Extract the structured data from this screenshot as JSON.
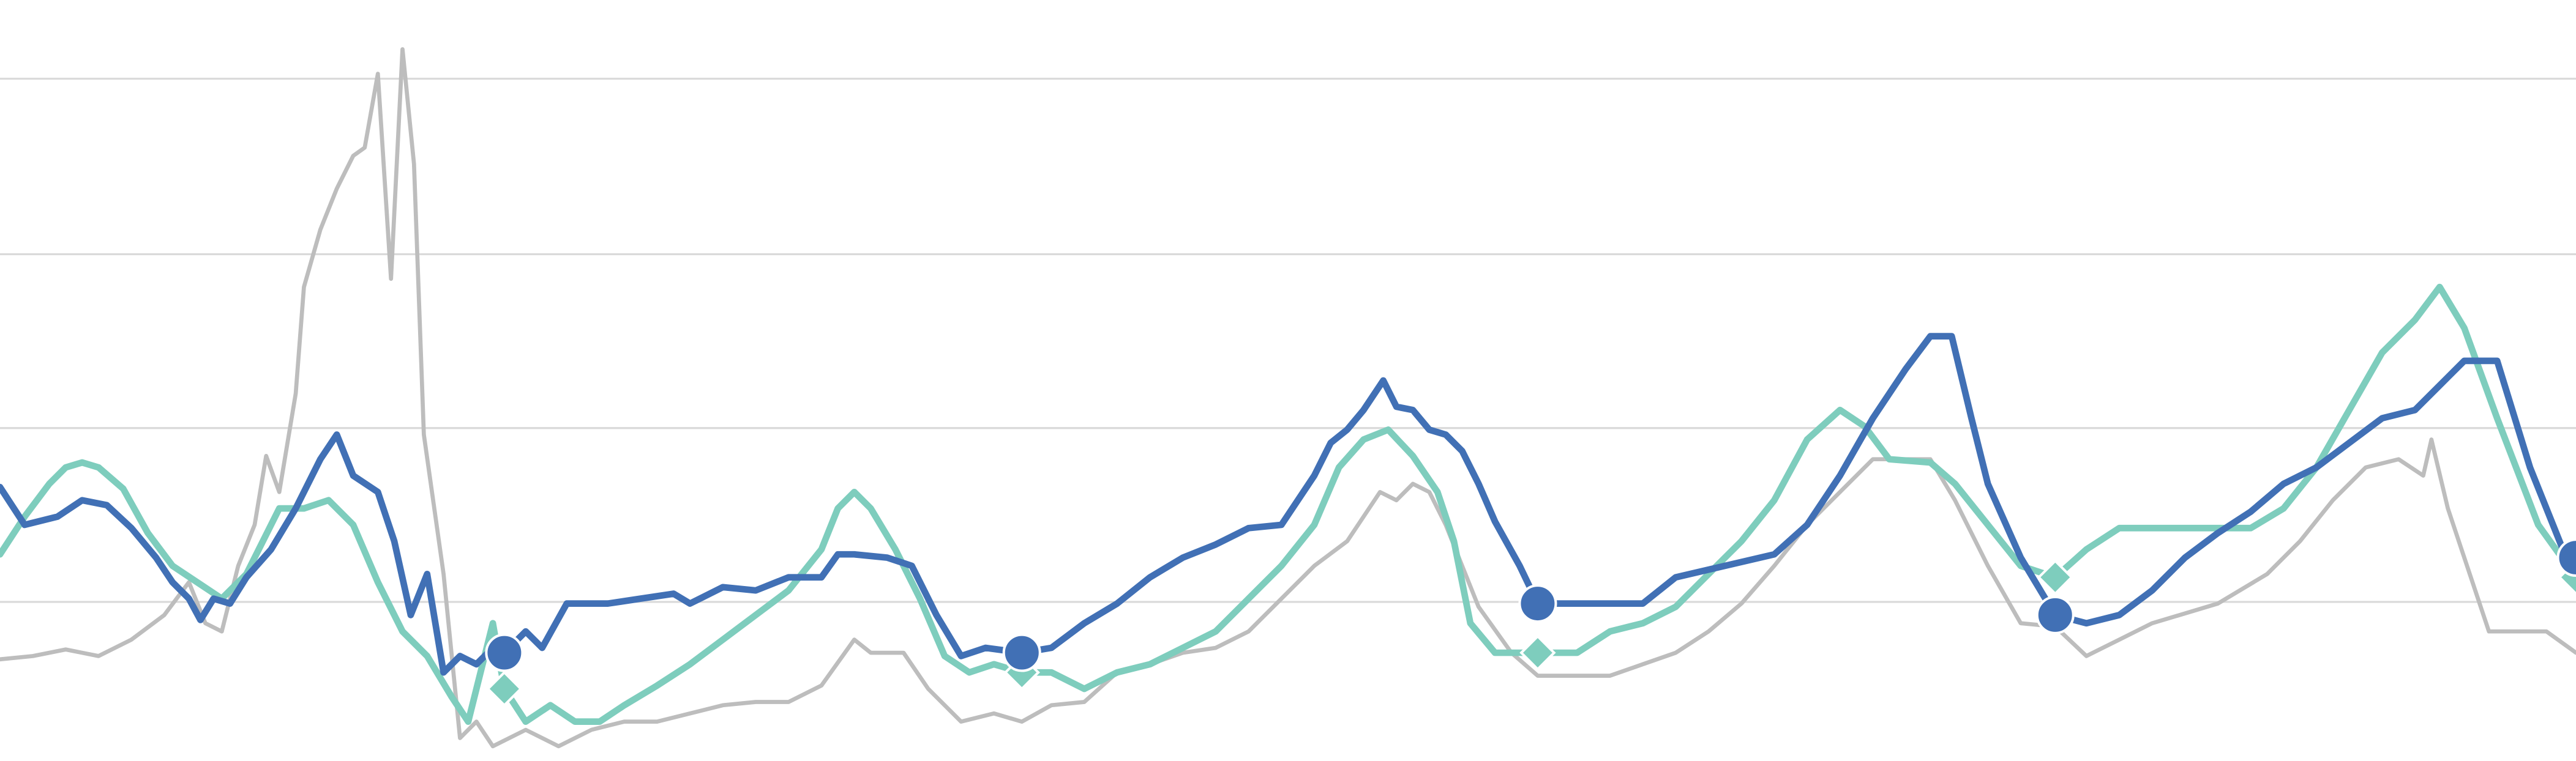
{
  "chart_data": {
    "type": "line",
    "xlim": [
      0,
      1568
    ],
    "ylim": [
      0,
      464
    ],
    "yticks": [
      97,
      203,
      309,
      416
    ],
    "grid": true,
    "series": [
      {
        "color": "#bdbdbd",
        "width": 2.5,
        "marker": "none",
        "markers": [],
        "x": [
          0,
          20,
          40,
          60,
          80,
          100,
          115,
          125,
          135,
          145,
          155,
          162,
          170,
          180,
          185,
          195,
          205,
          215,
          222,
          230,
          238,
          245,
          252,
          258,
          270,
          280,
          290,
          300,
          320,
          340,
          360,
          380,
          400,
          420,
          440,
          460,
          480,
          500,
          520,
          530,
          550,
          565,
          585,
          605,
          622,
          640,
          660,
          680,
          700,
          720,
          740,
          760,
          780,
          800,
          820,
          840,
          850,
          860,
          870,
          880,
          900,
          920,
          936,
          980,
          1000,
          1020,
          1040,
          1060,
          1080,
          1100,
          1120,
          1140,
          1175,
          1190,
          1210,
          1230,
          1251,
          1270,
          1290,
          1310,
          1350,
          1380,
          1400,
          1420,
          1440,
          1460,
          1475,
          1480,
          1490,
          1515,
          1550,
          1568
        ],
        "values": [
          62,
          64,
          68,
          64,
          74,
          89,
          109,
          84,
          79,
          119,
          144,
          186,
          164,
          224,
          289,
          324,
          349,
          369,
          374,
          419,
          294,
          434,
          364,
          199,
          114,
          14,
          24,
          9,
          19,
          9,
          19,
          24,
          24,
          29,
          34,
          36,
          36,
          46,
          74,
          66,
          66,
          44,
          24,
          29,
          24,
          34,
          36,
          54,
          59,
          66,
          69,
          79,
          99,
          119,
          134,
          164,
          159,
          169,
          164,
          144,
          94,
          66,
          52,
          52,
          59,
          66,
          79,
          96,
          119,
          144,
          164,
          184,
          184,
          159,
          119,
          84,
          82,
          64,
          74,
          84,
          96,
          114,
          134,
          159,
          179,
          184,
          174,
          196,
          154,
          79,
          79,
          66
        ]
      },
      {
        "color": "#7ecdbd",
        "width": 4,
        "marker": "diamond",
        "markers": [
          22,
          42,
          60,
          76,
          90
        ],
        "x": [
          0,
          15,
          30,
          40,
          50,
          60,
          75,
          90,
          105,
          120,
          135,
          150,
          170,
          185,
          200,
          215,
          230,
          245,
          260,
          275,
          285,
          300,
          307,
          320,
          335,
          350,
          365,
          380,
          400,
          420,
          440,
          460,
          480,
          500,
          510,
          520,
          530,
          545,
          560,
          575,
          590,
          605,
          622,
          640,
          660,
          680,
          700,
          720,
          740,
          760,
          780,
          800,
          815,
          830,
          845,
          860,
          875,
          885,
          895,
          910,
          936,
          960,
          980,
          1000,
          1020,
          1040,
          1060,
          1080,
          1100,
          1120,
          1135,
          1150,
          1175,
          1190,
          1210,
          1230,
          1251,
          1270,
          1290,
          1330,
          1370,
          1390,
          1410,
          1430,
          1450,
          1470,
          1485,
          1500,
          1520,
          1545,
          1568
        ],
        "values": [
          126,
          149,
          169,
          179,
          182,
          179,
          166,
          139,
          119,
          109,
          99,
          114,
          154,
          154,
          159,
          144,
          109,
          79,
          64,
          39,
          24,
          84,
          44,
          24,
          34,
          24,
          24,
          34,
          46,
          59,
          74,
          89,
          104,
          129,
          154,
          164,
          154,
          129,
          99,
          64,
          54,
          59,
          54,
          54,
          44,
          54,
          59,
          69,
          79,
          99,
          119,
          144,
          179,
          196,
          202,
          186,
          164,
          134,
          84,
          66,
          66,
          66,
          79,
          84,
          94,
          114,
          134,
          159,
          196,
          214,
          204,
          184,
          182,
          169,
          144,
          119,
          112,
          129,
          142,
          142,
          142,
          154,
          179,
          214,
          249,
          269,
          289,
          264,
          209,
          144,
          112
        ]
      },
      {
        "color": "#4170b5",
        "width": 4,
        "marker": "circle",
        "markers": [
          26,
          45,
          67,
          81,
          98
        ],
        "x": [
          0,
          15,
          35,
          50,
          65,
          80,
          95,
          105,
          115,
          122,
          130,
          140,
          150,
          165,
          180,
          195,
          205,
          215,
          230,
          240,
          250,
          260,
          270,
          280,
          290,
          300,
          307,
          320,
          330,
          345,
          370,
          390,
          410,
          420,
          440,
          460,
          480,
          500,
          510,
          520,
          540,
          555,
          570,
          585,
          600,
          622,
          640,
          660,
          680,
          700,
          720,
          740,
          760,
          780,
          800,
          810,
          820,
          830,
          842,
          850,
          860,
          870,
          880,
          890,
          900,
          910,
          925,
          936,
          1000,
          1020,
          1050,
          1080,
          1100,
          1120,
          1140,
          1160,
          1175,
          1188,
          1200,
          1210,
          1230,
          1251,
          1270,
          1290,
          1310,
          1330,
          1350,
          1370,
          1390,
          1410,
          1430,
          1450,
          1470,
          1490,
          1500,
          1520,
          1540,
          1560,
          1568
        ],
        "values": [
          167,
          144,
          149,
          159,
          156,
          142,
          124,
          109,
          99,
          86,
          99,
          96,
          112,
          129,
          154,
          184,
          199,
          174,
          164,
          134,
          89,
          114,
          54,
          64,
          59,
          69,
          66,
          79,
          69,
          96,
          96,
          99,
          102,
          96,
          106,
          104,
          112,
          112,
          126,
          126,
          124,
          119,
          89,
          64,
          69,
          66,
          69,
          84,
          96,
          112,
          124,
          132,
          142,
          144,
          174,
          194,
          202,
          214,
          232,
          216,
          214,
          202,
          199,
          189,
          169,
          146,
          119,
          96,
          96,
          112,
          119,
          126,
          144,
          174,
          209,
          239,
          259,
          259,
          209,
          169,
          124,
          89,
          84,
          89,
          104,
          124,
          139,
          152,
          169,
          179,
          194,
          209,
          214,
          234,
          244,
          244,
          179,
          129,
          124
        ]
      }
    ]
  }
}
